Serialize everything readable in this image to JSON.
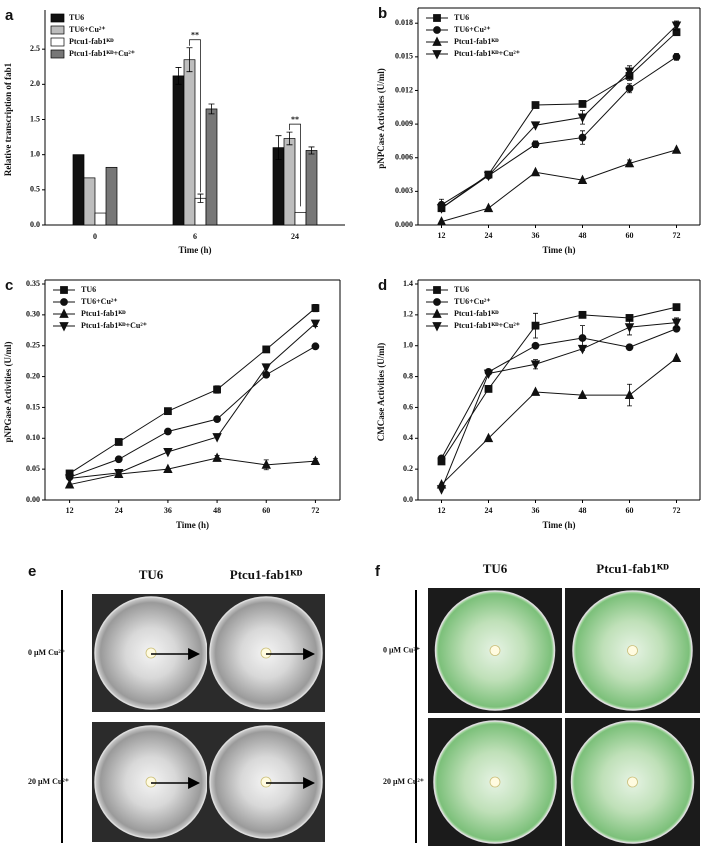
{
  "chart_data": [
    {
      "type": "bar",
      "panel_label": "a",
      "xlabel": "Time (h)",
      "ylabel": "Relative transcription of fab1",
      "categories": [
        "0",
        "6",
        "24"
      ],
      "series": [
        {
          "name": "TU6",
          "color": "#111111",
          "values": [
            1.0,
            2.12,
            1.1
          ],
          "errors": [
            null,
            0.12,
            0.17
          ]
        },
        {
          "name": "TU6+Cu²⁺",
          "color": "#bdbdbd",
          "values": [
            0.67,
            2.35,
            1.23
          ],
          "errors": [
            null,
            0.17,
            0.09
          ]
        },
        {
          "name": "Ptcu1-fab1ᴷᴰ",
          "color": "#ffffff",
          "values": [
            0.17,
            0.38,
            0.18
          ],
          "errors": [
            null,
            0.06,
            null
          ]
        },
        {
          "name": "Ptcu1-fab1ᴷᴰ+Cu²⁺",
          "color": "#777777",
          "values": [
            0.82,
            1.65,
            1.06
          ],
          "errors": [
            null,
            0.07,
            0.05
          ]
        }
      ],
      "annotations": [
        "**",
        "**"
      ],
      "ylim": [
        0,
        3
      ],
      "yticks": [
        {
          "value": 0,
          "label": "0.0"
        },
        {
          "value": 0.5,
          "label": "0.5"
        },
        {
          "value": 1,
          "label": "1.0"
        },
        {
          "value": 1.5,
          "label": "1.5"
        },
        {
          "value": 2,
          "label": "2.0"
        },
        {
          "value": 2.5,
          "label": "2.5"
        }
      ],
      "legend": "upper left"
    },
    {
      "type": "line",
      "panel_label": "b",
      "xlabel": "Time (h)",
      "ylabel": "pNPCase Activities (U/ml)",
      "x": [
        12,
        24,
        36,
        48,
        60,
        72
      ],
      "xlim": [
        6,
        78
      ],
      "xticks": [
        12,
        24,
        36,
        48,
        60,
        72
      ],
      "series": [
        {
          "name": "TU6",
          "color": "#111111",
          "marker": "square",
          "values": [
            0.0015,
            0.0045,
            0.0107,
            0.0108,
            0.0133,
            0.0172
          ],
          "errors": [
            null,
            null,
            null,
            null,
            0.0004,
            0.0003
          ]
        },
        {
          "name": "TU6+Cu²⁺",
          "color": "#111111",
          "marker": "circle",
          "values": [
            0.0018,
            0.0044,
            0.0072,
            0.0078,
            0.0122,
            0.015
          ],
          "errors": [
            0.0005,
            null,
            0.0003,
            0.0006,
            0.0004,
            0.0003
          ]
        },
        {
          "name": "Ptcu1-fab1ᴷᴰ",
          "color": "#111111",
          "marker": "triangle-up",
          "values": [
            0.0003,
            0.0015,
            0.0047,
            0.004,
            0.0055,
            0.0067
          ],
          "errors": [
            null,
            null,
            null,
            null,
            0.0003,
            null
          ]
        },
        {
          "name": "Ptcu1-fab1ᴷᴰ+Cu²⁺",
          "color": "#111111",
          "marker": "triangle-down",
          "values": [
            0.0015,
            0.0044,
            0.0089,
            0.0096,
            0.0137,
            0.0178
          ],
          "errors": [
            null,
            null,
            null,
            0.0006,
            0.0005,
            0.0004
          ]
        }
      ],
      "ylim": [
        0,
        0.019
      ],
      "yticks": [
        {
          "value": 0,
          "label": "0.000"
        },
        {
          "value": 0.003,
          "label": "0.003"
        },
        {
          "value": 0.006,
          "label": "0.006"
        },
        {
          "value": 0.009,
          "label": "0.009"
        },
        {
          "value": 0.012,
          "label": "0.012"
        },
        {
          "value": 0.015,
          "label": "0.015"
        },
        {
          "value": 0.018,
          "label": "0.018"
        }
      ],
      "legend": "upper left"
    },
    {
      "type": "line",
      "panel_label": "c",
      "xlabel": "Time (h)",
      "ylabel": "pNPGase Activities (U/ml)",
      "x": [
        12,
        24,
        36,
        48,
        60,
        72
      ],
      "xlim": [
        6,
        78
      ],
      "xticks": [
        12,
        24,
        36,
        48,
        60,
        72
      ],
      "series": [
        {
          "name": "TU6",
          "color": "#111111",
          "marker": "square",
          "values": [
            0.043,
            0.094,
            0.144,
            0.179,
            0.244,
            0.311
          ],
          "errors": [
            null,
            0.005,
            null,
            0.006,
            null,
            0.006
          ]
        },
        {
          "name": "TU6+Cu²⁺",
          "color": "#111111",
          "marker": "circle",
          "values": [
            0.037,
            0.066,
            0.111,
            0.131,
            0.203,
            0.249
          ],
          "errors": [
            null,
            0.004,
            null,
            null,
            null,
            null
          ]
        },
        {
          "name": "Ptcu1-fab1ᴷᴰ",
          "color": "#111111",
          "marker": "triangle-up",
          "values": [
            0.025,
            0.042,
            0.05,
            0.068,
            0.057,
            0.063
          ],
          "errors": [
            null,
            null,
            null,
            0.004,
            0.008,
            0.004
          ]
        },
        {
          "name": "Ptcu1-fab1ᴷᴰ+Cu²⁺",
          "color": "#111111",
          "marker": "triangle-down",
          "values": [
            0.035,
            0.044,
            0.078,
            0.102,
            0.215,
            0.286
          ],
          "errors": [
            null,
            null,
            null,
            null,
            null,
            0.005
          ]
        }
      ],
      "ylim": [
        0,
        0.35
      ],
      "yticks": [
        {
          "value": 0,
          "label": "0.00"
        },
        {
          "value": 0.05,
          "label": "0.05"
        },
        {
          "value": 0.1,
          "label": "0.10"
        },
        {
          "value": 0.15,
          "label": "0.15"
        },
        {
          "value": 0.2,
          "label": "0.20"
        },
        {
          "value": 0.25,
          "label": "0.25"
        },
        {
          "value": 0.3,
          "label": "0.30"
        },
        {
          "value": 0.35,
          "label": "0.35"
        }
      ],
      "legend": "upper left"
    },
    {
      "type": "line",
      "panel_label": "d",
      "xlabel": "Time (h)",
      "ylabel": "CMCase Activities (U/ml)",
      "x": [
        12,
        24,
        36,
        48,
        60,
        72
      ],
      "xlim": [
        6,
        78
      ],
      "xticks": [
        12,
        24,
        36,
        48,
        60,
        72
      ],
      "series": [
        {
          "name": "TU6",
          "color": "#111111",
          "marker": "square",
          "values": [
            0.25,
            0.72,
            1.13,
            1.2,
            1.18,
            1.25
          ],
          "errors": [
            null,
            null,
            0.08,
            null,
            null,
            null
          ]
        },
        {
          "name": "TU6+Cu²⁺",
          "color": "#111111",
          "marker": "circle",
          "values": [
            0.27,
            0.83,
            1.0,
            1.05,
            0.99,
            1.11
          ],
          "errors": [
            null,
            null,
            null,
            0.08,
            null,
            null
          ]
        },
        {
          "name": "Ptcu1-fab1ᴷᴰ",
          "color": "#111111",
          "marker": "triangle-up",
          "values": [
            0.1,
            0.4,
            0.7,
            0.68,
            0.68,
            0.92
          ],
          "errors": [
            null,
            null,
            null,
            null,
            0.07,
            null
          ]
        },
        {
          "name": "Ptcu1-fab1ᴷᴰ+Cu²⁺",
          "color": "#111111",
          "marker": "triangle-down",
          "values": [
            0.07,
            0.82,
            0.88,
            0.98,
            1.12,
            1.15
          ],
          "errors": [
            null,
            null,
            0.03,
            null,
            0.05,
            0.03
          ]
        }
      ],
      "ylim": [
        0,
        1.4
      ],
      "yticks": [
        {
          "value": 0,
          "label": "0.0"
        },
        {
          "value": 0.2,
          "label": "0.2"
        },
        {
          "value": 0.4,
          "label": "0.4"
        },
        {
          "value": 0.6,
          "label": "0.6"
        },
        {
          "value": 0.8,
          "label": "0.8"
        },
        {
          "value": 1,
          "label": "1.0"
        },
        {
          "value": 1.2,
          "label": "1.2"
        },
        {
          "value": 1.4,
          "label": "1.4"
        }
      ],
      "legend": "upper left"
    }
  ],
  "photo_panels": [
    {
      "panel_label": "e",
      "columns": [
        "TU6",
        "Ptcu1-fab1ᴷᴰ"
      ],
      "rows": [
        "0 μM Cu²⁺",
        "20 μM Cu²⁺"
      ]
    },
    {
      "panel_label": "f",
      "columns": [
        "TU6",
        "Ptcu1-fab1ᴷᴰ"
      ],
      "rows": [
        "0 μM Cu²⁺",
        "20 μM Cu²⁺"
      ]
    }
  ]
}
